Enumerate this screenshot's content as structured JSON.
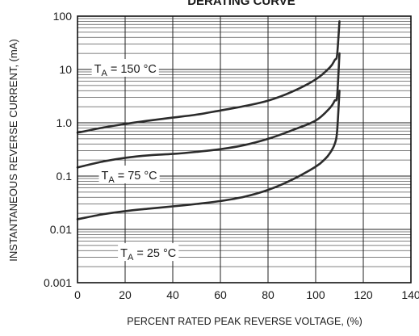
{
  "chart_data": {
    "type": "line",
    "title": "DERATING CURVE",
    "xlabel": "PERCENT RATED PEAK REVERSE VOLTAGE, (%)",
    "ylabel": "INSTANTANEOUS REVERSE CURRENT, (mA)",
    "xlim": [
      0,
      140
    ],
    "ylim": [
      0.001,
      100
    ],
    "yscale": "log",
    "x_ticks": [
      0,
      20,
      40,
      60,
      80,
      100,
      120,
      140
    ],
    "y_ticks": [
      0.001,
      0.01,
      0.1,
      1.0,
      10,
      100
    ],
    "x_tick_labels": [
      "0",
      "20",
      "40",
      "60",
      "80",
      "100",
      "120",
      "140"
    ],
    "y_tick_labels": [
      "0.001",
      "0.01",
      "0.1",
      "1.0",
      "10",
      "100"
    ],
    "grid": "log-minor horizontal, major vertical",
    "series": [
      {
        "label_var": "T",
        "label_sub": "A",
        "label_val": "= 150 °C",
        "label_at": [
          7,
          10
        ],
        "x": [
          0,
          10,
          20,
          30,
          40,
          50,
          60,
          70,
          80,
          90,
          100,
          106,
          108,
          109,
          110
        ],
        "y": [
          0.65,
          0.8,
          0.95,
          1.1,
          1.25,
          1.42,
          1.7,
          2.05,
          2.6,
          3.8,
          6.5,
          11,
          15,
          19,
          80
        ]
      },
      {
        "label_var": "T",
        "label_sub": "A",
        "label_val": "= 75 °C",
        "label_at": [
          10,
          0.1
        ],
        "x": [
          0,
          10,
          20,
          30,
          40,
          50,
          60,
          70,
          80,
          90,
          100,
          106,
          108,
          109,
          110
        ],
        "y": [
          0.145,
          0.185,
          0.22,
          0.245,
          0.26,
          0.285,
          0.32,
          0.38,
          0.5,
          0.72,
          1.1,
          1.9,
          2.6,
          3.2,
          20
        ]
      },
      {
        "label_var": "T",
        "label_sub": "A",
        "label_val": "= 25 °C",
        "label_at": [
          18,
          0.0035
        ],
        "x": [
          0,
          10,
          20,
          30,
          40,
          50,
          60,
          70,
          80,
          90,
          100,
          104,
          106,
          108,
          109,
          110
        ],
        "y": [
          0.0155,
          0.019,
          0.022,
          0.0245,
          0.027,
          0.03,
          0.034,
          0.041,
          0.055,
          0.085,
          0.15,
          0.21,
          0.27,
          0.4,
          0.7,
          4
        ]
      }
    ]
  }
}
